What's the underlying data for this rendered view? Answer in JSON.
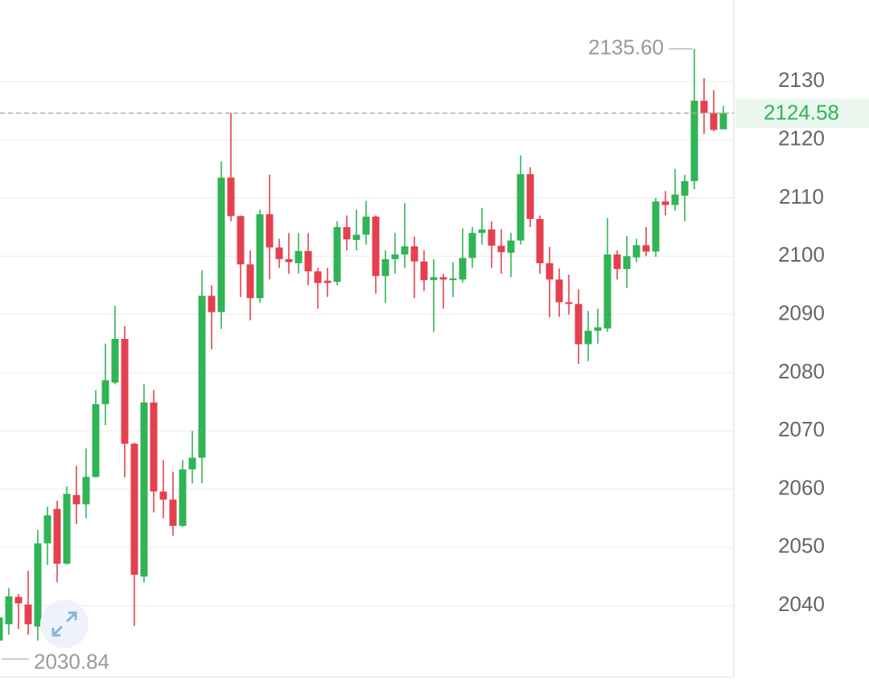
{
  "chart_data": {
    "type": "candlestick",
    "up_color": "#30b455",
    "down_color": "#e5404f",
    "grid": true,
    "ylim": [
      2026.2,
      2144
    ],
    "yticks": [
      2040,
      2050,
      2060,
      2070,
      2080,
      2090,
      2100,
      2110,
      2120,
      2130
    ],
    "open": [
      2034,
      2036.8,
      2041.5,
      2040.2,
      2036.4,
      2050.7,
      2056.6,
      2047.2,
      2059,
      2057.4,
      2062.1,
      2074.6,
      2078.3,
      2085.8,
      2067.8,
      2045,
      2074.9,
      2059.6,
      2058.2,
      2053.7,
      2063.4,
      2065.4,
      2093.2,
      2090.4,
      2113.5,
      2106.9,
      2098.6,
      2092.8,
      2107.2,
      2101.5,
      2099.5,
      2098.8,
      2100.9,
      2097.4,
      2095.8,
      2095.6,
      2105,
      2102.8,
      2103.7,
      2106.8,
      2096.6,
      2099.5,
      2100.3,
      2101.7,
      2099.1,
      2095.9,
      2096.4,
      2095.9,
      2096,
      2099.7,
      2104,
      2104.6,
      2101.8,
      2100.6,
      2102.7,
      2114.1,
      2106.4,
      2098.8,
      2096,
      2092.1,
      2091.8,
      2084.9,
      2087.2,
      2087.6,
      2100.3,
      2097.8,
      2099.8,
      2101.9,
      2100.8,
      2109.4,
      2108.8,
      2110.4,
      2112.9,
      2126.7,
      2124.6,
      2121.8
    ],
    "high": [
      2040,
      2043,
      2042,
      2046,
      2053,
      2057,
      2058,
      2060.5,
      2064,
      2067,
      2077,
      2085,
      2091.5,
      2088,
      2068,
      2078,
      2077,
      2065,
      2063,
      2065,
      2070,
      2097.6,
      2095,
      2116.3,
      2124.6,
      2107,
      2101,
      2108,
      2114,
      2103,
      2104,
      2104,
      2104,
      2098,
      2098,
      2106,
      2107,
      2108,
      2109.5,
      2107,
      2101,
      2104,
      2109.1,
      2103.4,
      2101,
      2099.5,
      2097,
      2099,
      2104.8,
      2105,
      2108.3,
      2106,
      2104.6,
      2104,
      2117.3,
      2115.3,
      2107,
      2101.6,
      2097.9,
      2096.8,
      2094.3,
      2090.6,
      2091,
      2106.6,
      2101,
      2103.5,
      2103,
      2105,
      2110,
      2111.2,
      2115,
      2114,
      2135.6,
      2130.6,
      2128.5,
      2125.8
    ],
    "low": [
      2030.84,
      2035,
      2036,
      2035,
      2034,
      2047,
      2044,
      2047,
      2054,
      2055,
      2062,
      2071,
      2078,
      2062,
      2036.5,
      2044,
      2056,
      2055,
      2052,
      2053.5,
      2061,
      2061,
      2084,
      2087.5,
      2106,
      2093,
      2089,
      2092,
      2096,
      2098,
      2097,
      2097,
      2095,
      2091,
      2093,
      2095,
      2101,
      2101,
      2102,
      2093.6,
      2092,
      2097,
      2098,
      2092.8,
      2094,
      2087,
      2091,
      2093,
      2095.5,
      2098,
      2102,
      2098,
      2097,
      2096.4,
      2102,
      2105,
      2097,
      2089.5,
      2089.6,
      2090,
      2081.5,
      2082,
      2085,
      2087,
      2096,
      2094.5,
      2099,
      2100,
      2099.9,
      2107,
      2107.8,
      2106,
      2111.5,
      2121,
      2121.5,
      2121.8
    ],
    "close": [
      2038,
      2041.6,
      2040.4,
      2036.8,
      2050.7,
      2055.5,
      2047.2,
      2059.2,
      2057.4,
      2062.1,
      2074.6,
      2078.7,
      2085.8,
      2067.8,
      2045.3,
      2074.9,
      2059.6,
      2058.2,
      2053.7,
      2063.4,
      2065.4,
      2093.2,
      2090.4,
      2113.5,
      2106.9,
      2098.6,
      2092.8,
      2107.2,
      2101.5,
      2099.5,
      2099,
      2100.9,
      2097.4,
      2095.4,
      2095.4,
      2105,
      2102.9,
      2103.7,
      2106.8,
      2096.6,
      2099.5,
      2100.3,
      2101.7,
      2099.1,
      2095.9,
      2096.4,
      2096,
      2096.2,
      2099.7,
      2104,
      2104.6,
      2101.8,
      2100.7,
      2102.7,
      2114.1,
      2106.4,
      2098.8,
      2096,
      2092.1,
      2091.8,
      2084.9,
      2087.2,
      2087.8,
      2100.3,
      2097.8,
      2100,
      2101.9,
      2100.8,
      2109.4,
      2108.8,
      2110.6,
      2112.9,
      2126.7,
      2124.6,
      2121.7,
      2124.58
    ],
    "max_label": {
      "value": 2135.6,
      "label": "2135.60"
    },
    "min_label": {
      "value": 2030.84,
      "label": "2030.84"
    },
    "last_price": {
      "value": 2124.58,
      "label": "2124.58"
    }
  }
}
